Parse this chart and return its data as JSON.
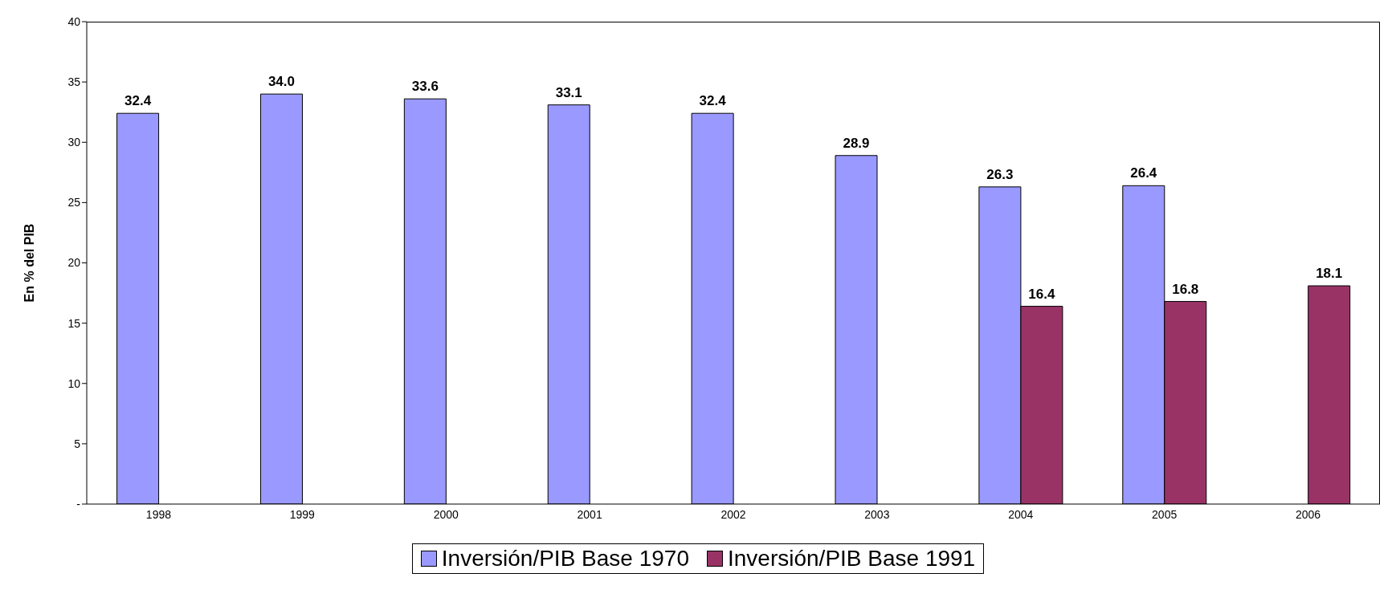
{
  "chart_data": {
    "type": "bar",
    "ylabel": "En % del PIB",
    "categories": [
      "1998",
      "1999",
      "2000",
      "2001",
      "2002",
      "2003",
      "2004",
      "2005",
      "2006"
    ],
    "series": [
      {
        "name": "Inversión/PIB Base 1970",
        "color": "#9999ff",
        "values": [
          32.4,
          34.0,
          33.6,
          33.1,
          32.4,
          28.9,
          26.3,
          26.4,
          null
        ],
        "value_labels": [
          "32.4",
          "34.0",
          "33.6",
          "33.1",
          "32.4",
          "28.9",
          "26.3",
          "26.4",
          null
        ]
      },
      {
        "name": "Inversión/PIB Base 1991",
        "color": "#993366",
        "values": [
          null,
          null,
          null,
          null,
          null,
          null,
          16.4,
          16.8,
          18.1
        ],
        "value_labels": [
          null,
          null,
          null,
          null,
          null,
          null,
          "16.4",
          "16.8",
          "18.1"
        ]
      }
    ],
    "ylim": [
      0,
      40
    ],
    "yticks": [
      {
        "value": 0,
        "label": "-"
      },
      5,
      10,
      15,
      20,
      25,
      30,
      35,
      40
    ],
    "legend": "bottom"
  }
}
